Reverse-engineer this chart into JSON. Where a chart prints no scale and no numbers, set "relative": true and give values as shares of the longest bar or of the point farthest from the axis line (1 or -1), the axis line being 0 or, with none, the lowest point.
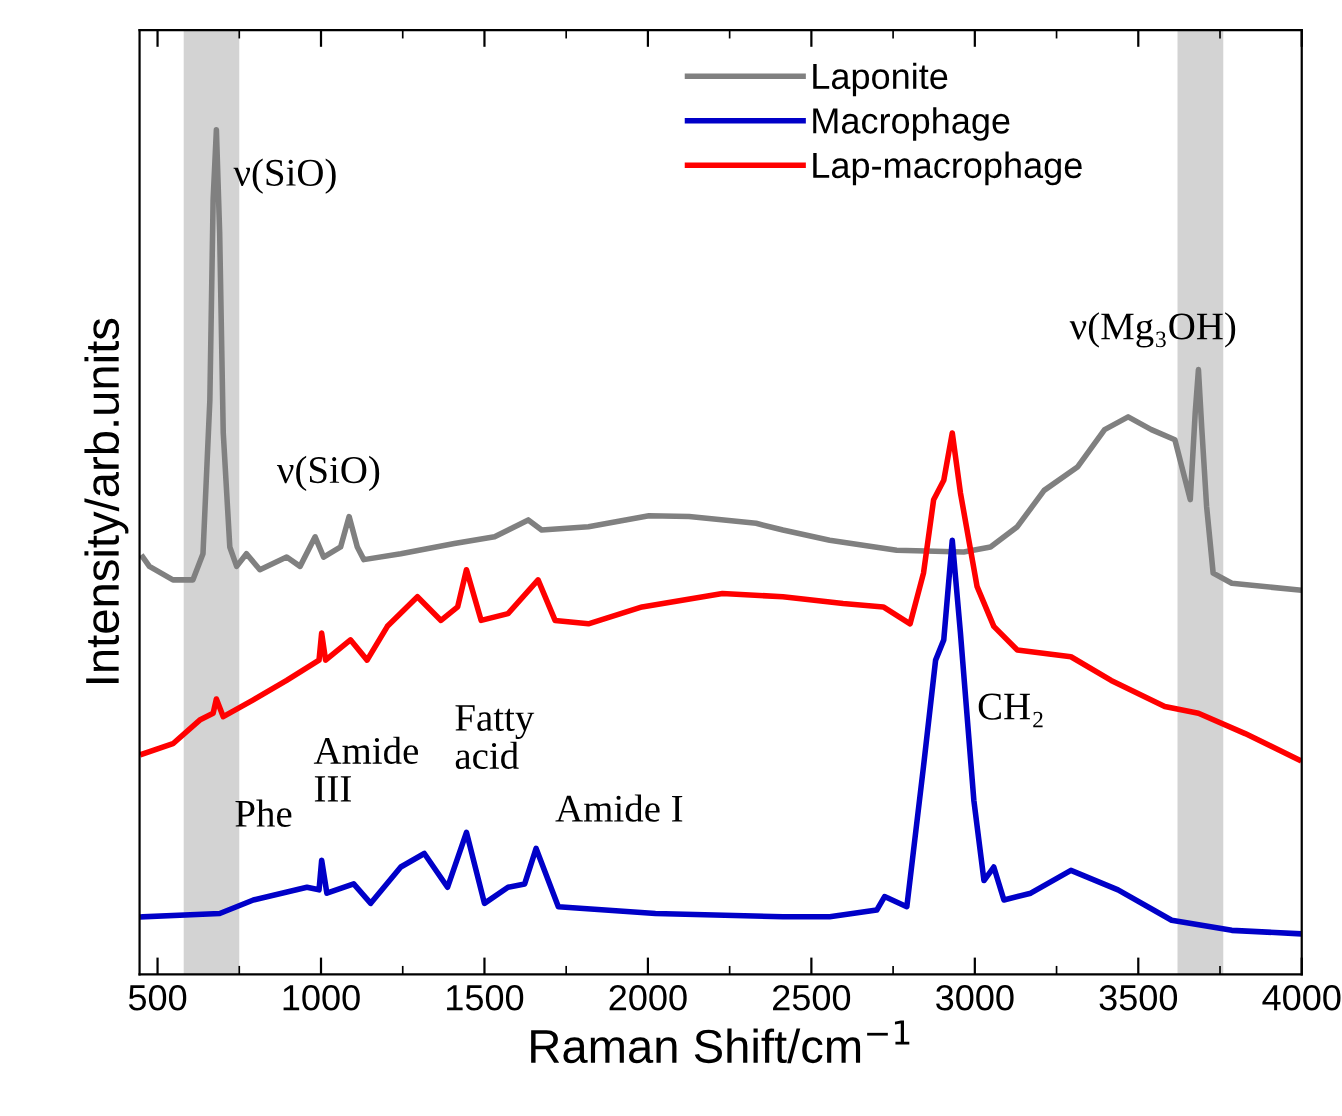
{
  "chart_data": {
    "type": "line",
    "relative": true,
    "xlabel": "Raman Shift/cm$^{−1}$",
    "ylabel": "Intensity/arb.units",
    "xlim": [
      445,
      4000
    ],
    "xticks": [
      500,
      1000,
      1500,
      2000,
      2500,
      3000,
      3500,
      4000
    ],
    "grid": false,
    "legend": "top right",
    "tick_labels": "x",
    "bands": [
      {
        "axis": "x",
        "from": 580,
        "to": 750,
        "color": "#d3d3d3"
      },
      {
        "axis": "x",
        "from": 3620,
        "to": 3760,
        "color": "#d3d3d3"
      }
    ],
    "annotations": [
      {
        "text": "ν(SiO)",
        "x": 680,
        "y": 1.0
      },
      {
        "text": "ν(SiO)",
        "x": 1086,
        "y": 0.542
      },
      {
        "text": "Phe",
        "x": 1002,
        "y": 0.135
      },
      {
        "text": "Amide\nIII",
        "x": 1244,
        "y": 0.127
      },
      {
        "text": "Fatty\nacid",
        "x": 1445,
        "y": 0.168
      },
      {
        "text": "Amide I",
        "x": 1658,
        "y": 0.149
      },
      {
        "text": "CH₂",
        "x": 2970,
        "y": 0.336
      },
      {
        "text": "ν(Mg₃OH)",
        "x": 3684,
        "y": 0.716
      }
    ],
    "series": [
      {
        "name": "Laponite",
        "color": "#808080",
        "x": [
          455,
          475,
          547,
          608,
          639,
          660,
          670,
          680,
          690,
          701,
          721,
          742,
          772,
          813,
          895,
          936,
          982,
          1008,
          1060,
          1086,
          1111,
          1131,
          1244,
          1408,
          1531,
          1634,
          1675,
          1818,
          2003,
          2126,
          2331,
          2413,
          2556,
          2761,
          2966,
          3048,
          3130,
          3212,
          3315,
          3397,
          3469,
          3540,
          3612,
          3659,
          3674,
          3684,
          3694,
          3709,
          3729,
          3786,
          3991
        ],
        "values": [
          0.494,
          0.483,
          0.467,
          0.467,
          0.498,
          0.68,
          0.917,
          1.0,
          0.878,
          0.641,
          0.506,
          0.483,
          0.498,
          0.479,
          0.494,
          0.483,
          0.518,
          0.494,
          0.506,
          0.542,
          0.506,
          0.491,
          0.498,
          0.51,
          0.518,
          0.538,
          0.526,
          0.53,
          0.543,
          0.542,
          0.534,
          0.526,
          0.514,
          0.502,
          0.5,
          0.506,
          0.53,
          0.573,
          0.601,
          0.645,
          0.66,
          0.645,
          0.633,
          0.562,
          0.664,
          0.716,
          0.648,
          0.554,
          0.475,
          0.463,
          0.455
        ]
      },
      {
        "name": "Macrophage",
        "color": "#0000c8",
        "x": [
          455,
          690,
          793,
          957,
          994,
          1002,
          1018,
          1100,
          1152,
          1244,
          1316,
          1387,
          1445,
          1500,
          1572,
          1623,
          1658,
          1726,
          2023,
          2413,
          2556,
          2700,
          2724,
          2792,
          2843,
          2880,
          2905,
          2931,
          2956,
          2997,
          3028,
          3058,
          3089,
          3171,
          3294,
          3438,
          3602,
          3786,
          3991
        ],
        "values": [
          0.068,
          0.072,
          0.088,
          0.103,
          0.1,
          0.135,
          0.096,
          0.107,
          0.084,
          0.127,
          0.143,
          0.103,
          0.168,
          0.084,
          0.103,
          0.107,
          0.149,
          0.08,
          0.072,
          0.068,
          0.068,
          0.076,
          0.092,
          0.08,
          0.246,
          0.372,
          0.396,
          0.514,
          0.404,
          0.206,
          0.111,
          0.127,
          0.088,
          0.096,
          0.123,
          0.1,
          0.064,
          0.052,
          0.048
        ]
      },
      {
        "name": "Lap-macrophage",
        "color": "#ff0000",
        "x": [
          455,
          547,
          629,
          670,
          680,
          701,
          793,
          895,
          994,
          1002,
          1014,
          1090,
          1141,
          1203,
          1295,
          1367,
          1418,
          1445,
          1490,
          1572,
          1664,
          1716,
          1818,
          1982,
          2228,
          2413,
          2597,
          2720,
          2802,
          2843,
          2874,
          2905,
          2931,
          2956,
          3007,
          3058,
          3130,
          3294,
          3417,
          3581,
          3684,
          3827,
          3991
        ],
        "values": [
          0.261,
          0.273,
          0.301,
          0.309,
          0.326,
          0.305,
          0.325,
          0.348,
          0.372,
          0.404,
          0.372,
          0.396,
          0.372,
          0.412,
          0.447,
          0.419,
          0.435,
          0.479,
          0.419,
          0.427,
          0.467,
          0.419,
          0.415,
          0.435,
          0.451,
          0.447,
          0.439,
          0.435,
          0.415,
          0.475,
          0.562,
          0.585,
          0.641,
          0.57,
          0.459,
          0.412,
          0.384,
          0.376,
          0.348,
          0.317,
          0.309,
          0.285,
          0.254
        ]
      }
    ]
  }
}
